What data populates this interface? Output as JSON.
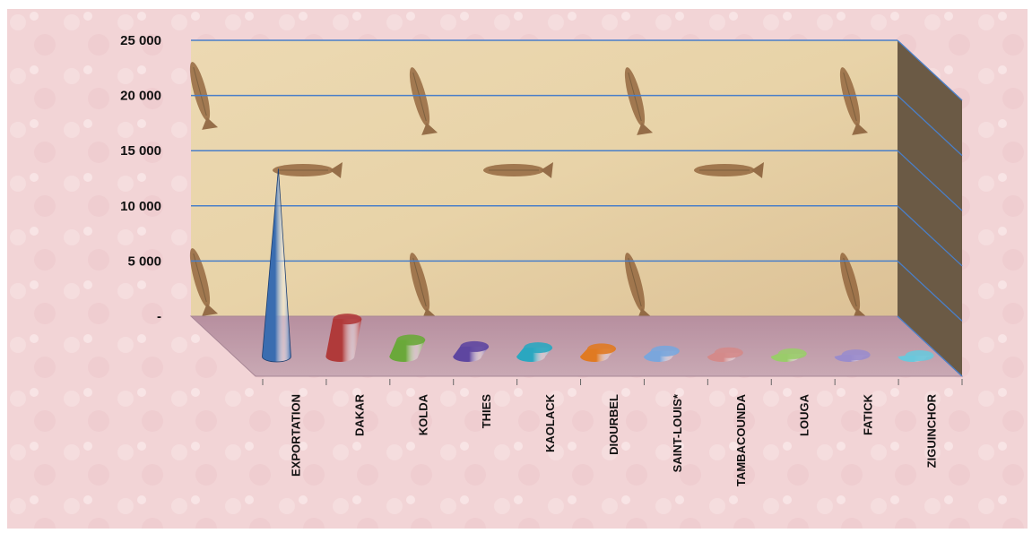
{
  "chart_data": {
    "type": "bar",
    "style": "3d-cone",
    "title": "",
    "xlabel": "",
    "ylabel": "",
    "ylim": [
      0,
      25000
    ],
    "yticks": [
      0,
      5000,
      10000,
      15000,
      20000,
      25000
    ],
    "ytick_labels": [
      "-",
      "5 000",
      "10 000",
      "15 000",
      "20 000",
      "25 000"
    ],
    "grid": true,
    "legend": "none",
    "categories": [
      "EXPORTATION",
      "DAKAR",
      "KOLDA",
      "THIES",
      "KAOLACK",
      "DIOURBEL",
      "SAINT-LOUIS*",
      "TAMBACOUNDA",
      "LOUGA",
      "FATICK",
      "ZIGUINCHOR"
    ],
    "values": [
      17000,
      3400,
      1500,
      900,
      800,
      700,
      500,
      350,
      250,
      150,
      80
    ],
    "colors": [
      "#3a6db0",
      "#b03a3a",
      "#6aa83a",
      "#5e46a0",
      "#2aa7c0",
      "#e07a22",
      "#7aa6dc",
      "#d48a8a",
      "#9acc6a",
      "#9a8ccc",
      "#6ac8dc"
    ]
  },
  "style": {
    "background": "#f2d4d6",
    "wall": "#e8d3a8",
    "side_wall": "#6b5a45",
    "floor": "#c9a9b4",
    "grid_color": "#4a7fc8"
  }
}
